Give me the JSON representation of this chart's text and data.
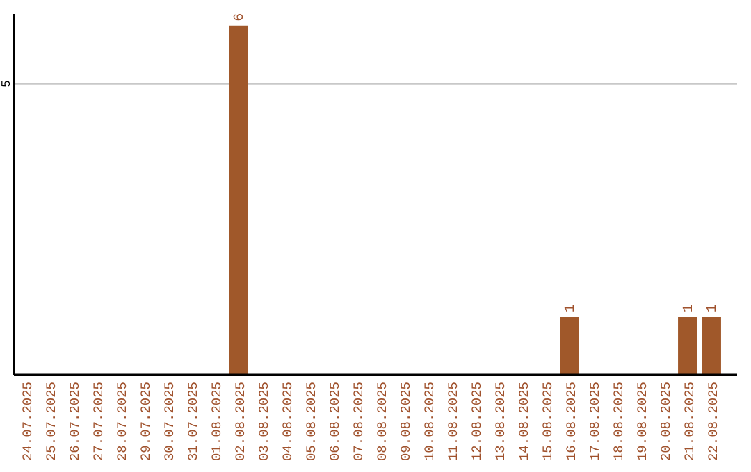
{
  "chart_data": {
    "type": "bar",
    "categories": [
      "24.07.2025",
      "25.07.2025",
      "26.07.2025",
      "27.07.2025",
      "28.07.2025",
      "29.07.2025",
      "30.07.2025",
      "31.07.2025",
      "01.08.2025",
      "02.08.2025",
      "03.08.2025",
      "04.08.2025",
      "05.08.2025",
      "06.08.2025",
      "07.08.2025",
      "08.08.2025",
      "09.08.2025",
      "10.08.2025",
      "11.08.2025",
      "12.08.2025",
      "13.08.2025",
      "14.08.2025",
      "15.08.2025",
      "16.08.2025",
      "17.08.2025",
      "18.08.2025",
      "19.08.2025",
      "20.08.2025",
      "21.08.2025",
      "22.08.2025"
    ],
    "values": [
      0,
      0,
      0,
      0,
      0,
      0,
      0,
      0,
      0,
      6,
      0,
      0,
      0,
      0,
      0,
      0,
      0,
      0,
      0,
      0,
      0,
      0,
      0,
      1,
      0,
      0,
      0,
      0,
      1,
      1
    ],
    "value_labels": [
      null,
      null,
      null,
      null,
      null,
      null,
      null,
      null,
      null,
      "6",
      null,
      null,
      null,
      null,
      null,
      null,
      null,
      null,
      null,
      null,
      null,
      null,
      null,
      "1",
      null,
      null,
      null,
      null,
      "1",
      "1"
    ],
    "color": "#a0582a",
    "ylim": [
      0,
      6.2
    ],
    "yticks": [
      5
    ],
    "grid": "y"
  }
}
